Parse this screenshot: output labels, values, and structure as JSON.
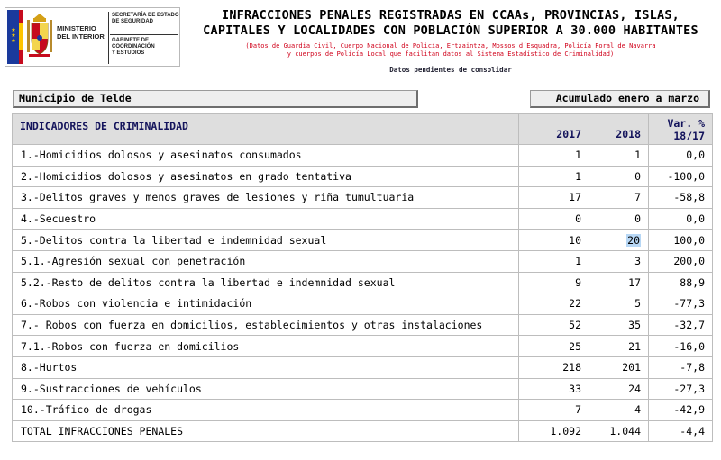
{
  "header": {
    "logo": {
      "ministry_lines": [
        "MINISTERIO",
        "DEL INTERIOR"
      ],
      "secretaria_lines": [
        "SECRETARÍA DE ESTADO",
        "DE SEGURIDAD"
      ],
      "gabinete_lines": [
        "GABINETE DE COORDINACIÓN",
        "Y ESTUDIOS"
      ]
    },
    "title_lines": [
      "INFRACCIONES PENALES REGISTRADAS EN CCAAs, PROVINCIAS, ISLAS,",
      "CAPITALES Y LOCALIDADES CON POBLACIÓN SUPERIOR A 30.000 HABITANTES"
    ],
    "subtitle_lines": [
      "(Datos de Guardia Civil, Cuerpo Nacional de Policía, Ertzaintza, Mossos d´Esquadra, Policía Foral de Navarra",
      "y cuerpos de Policía Local que facilitan datos al Sistema Estadístico de Criminalidad)"
    ],
    "pending_note": "Datos pendientes de consolidar",
    "municipality": "Municipio de Telde",
    "period": "Acumulado enero a marzo"
  },
  "colors": {
    "subtitle": "#d0021b",
    "header_text": "#14145c",
    "header_bg": "#dedede",
    "highlight": "#b7d7f5"
  },
  "table": {
    "columns": {
      "indicator": "INDICADORES DE CRIMINALIDAD",
      "y1": "2017",
      "y2": "2018",
      "var_line1": "Var. %",
      "var_line2": "18/17"
    },
    "rows": [
      {
        "label": "1.-Homicidios dolosos y asesinatos consumados",
        "y2017": "1",
        "y2018": "1",
        "var": "0,0"
      },
      {
        "label": "2.-Homicidios dolosos y asesinatos en grado tentativa",
        "y2017": "1",
        "y2018": "0",
        "var": "-100,0"
      },
      {
        "label": "3.-Delitos graves y menos graves de lesiones y riña tumultuaria",
        "y2017": "17",
        "y2018": "7",
        "var": "-58,8"
      },
      {
        "label": "4.-Secuestro",
        "y2017": "0",
        "y2018": "0",
        "var": "0,0"
      },
      {
        "label": "5.-Delitos contra la libertad e indemnidad sexual",
        "y2017": "10",
        "y2018": "20",
        "var": "100,0"
      },
      {
        "label": "5.1.-Agresión sexual con penetración",
        "y2017": "1",
        "y2018": "3",
        "var": "200,0"
      },
      {
        "label": "5.2.-Resto de delitos contra la libertad e indemnidad sexual",
        "y2017": "9",
        "y2018": "17",
        "var": "88,9"
      },
      {
        "label": "6.-Robos con violencia e intimidación",
        "y2017": "22",
        "y2018": "5",
        "var": "-77,3"
      },
      {
        "label": "7.- Robos con fuerza en domicilios, establecimientos y otras instalaciones",
        "y2017": "52",
        "y2018": "35",
        "var": "-32,7"
      },
      {
        "label": "7.1.-Robos con fuerza en domicilios",
        "y2017": "25",
        "y2018": "21",
        "var": "-16,0"
      },
      {
        "label": "8.-Hurtos",
        "y2017": "218",
        "y2018": "201",
        "var": "-7,8"
      },
      {
        "label": "9.-Sustracciones de vehículos",
        "y2017": "33",
        "y2018": "24",
        "var": "-27,3"
      },
      {
        "label": "10.-Tráfico de drogas",
        "y2017": "7",
        "y2018": "4",
        "var": "-42,9"
      },
      {
        "label": "TOTAL INFRACCIONES PENALES",
        "y2017": "1.092",
        "y2018": "1.044",
        "var": "-4,4"
      }
    ]
  }
}
